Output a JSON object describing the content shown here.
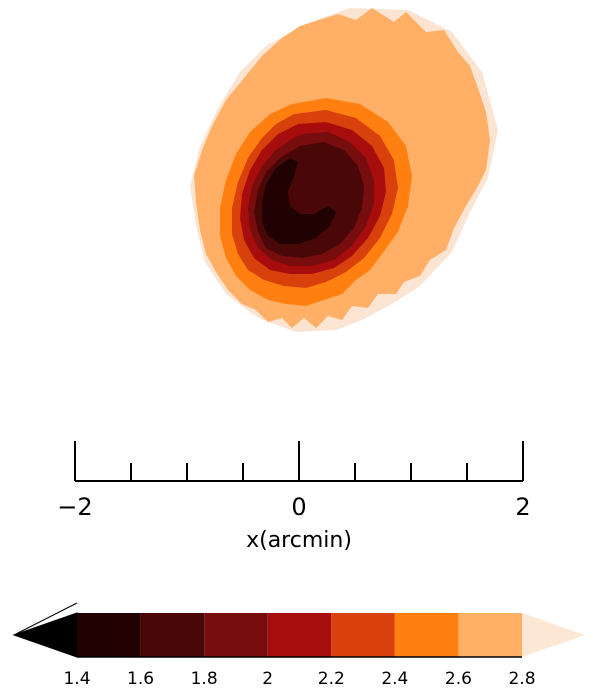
{
  "chart_data": {
    "type": "contour",
    "x_axis": {
      "label": "x(arcmin)",
      "range": [
        -2,
        2
      ],
      "major_ticks": [
        -2,
        0,
        2
      ],
      "major_tick_labels": [
        "−2",
        "0",
        "2"
      ],
      "minor_ticks": [
        -1.5,
        -1,
        -0.5,
        0.5,
        1,
        1.5
      ]
    },
    "contour_levels": [
      1.4,
      1.6,
      1.8,
      2,
      2.2,
      2.4,
      2.6,
      2.8
    ],
    "colorbar": {
      "tick_labels": [
        "1.4",
        "1.6",
        "1.8",
        "2",
        "2.2",
        "2.4",
        "2.6",
        "2.8"
      ],
      "band_colors": [
        "#200202",
        "#4a0707",
        "#780d0d",
        "#a80d0d",
        "#d9410c",
        "#ff8010",
        "#ffb066"
      ],
      "under_color": "#000000",
      "over_color": "#fde8d6",
      "extend": "both"
    },
    "contour_fill_colors": {
      "outer_halo": "#fbe4d2",
      "level_2.6": "#ffb066",
      "level_2.4": "#ff8010",
      "level_2.2": "#d9410c",
      "level_2.0": "#a80d0d",
      "level_1.8": "#780d0d",
      "level_1.6": "#4a0707",
      "level_1.4": "#200202"
    }
  }
}
